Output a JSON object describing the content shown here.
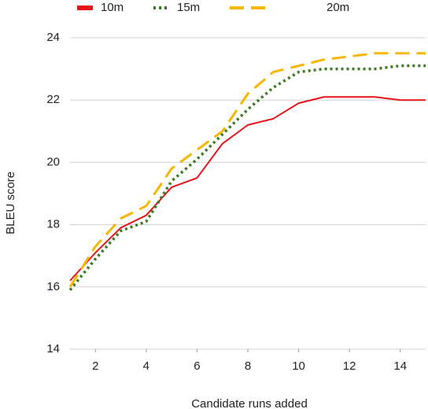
{
  "chart_data": {
    "type": "line",
    "x_label": "Candidate runs added",
    "y_label": "BLEU score",
    "x": [
      1,
      2,
      3,
      4,
      5,
      6,
      7,
      8,
      9,
      10,
      11,
      12,
      13,
      14,
      15
    ],
    "series": [
      {
        "name": "10m",
        "color": "#e8141b",
        "dash": "solid",
        "values": [
          16.2,
          17.1,
          17.9,
          18.3,
          19.2,
          19.5,
          20.6,
          21.2,
          21.4,
          21.9,
          22.1,
          22.1,
          22.1,
          22.0,
          22.0
        ]
      },
      {
        "name": "15m",
        "color": "#3a7a23",
        "dash": "dotted",
        "values": [
          15.9,
          16.9,
          17.8,
          18.1,
          19.4,
          20.1,
          20.9,
          21.7,
          22.4,
          22.9,
          23.0,
          23.0,
          23.0,
          23.1,
          23.1
        ]
      },
      {
        "name": "20m",
        "color": "#f5b800",
        "dash": "dashed",
        "values": [
          16.0,
          17.3,
          18.2,
          18.6,
          19.8,
          20.4,
          21.0,
          22.2,
          22.9,
          23.1,
          23.3,
          23.4,
          23.5,
          23.5,
          23.5
        ]
      }
    ],
    "xlim": [
      1,
      15
    ],
    "xticks": [
      2,
      4,
      6,
      8,
      10,
      12,
      14
    ],
    "ylim": [
      14,
      24
    ],
    "yticks": [
      14,
      16,
      18,
      20,
      22,
      24
    ],
    "grid": true,
    "legend": "top"
  }
}
